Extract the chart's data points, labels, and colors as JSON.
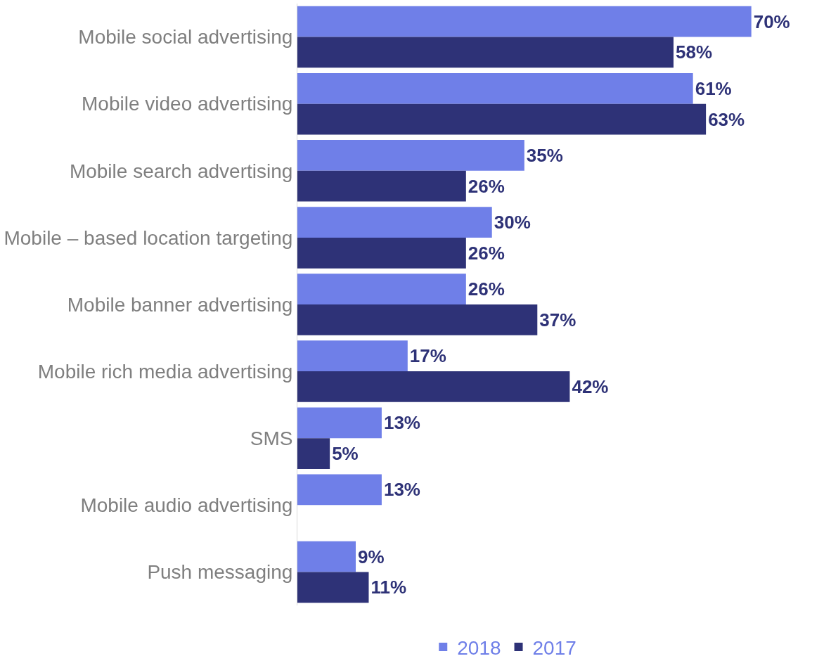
{
  "chart_data": {
    "type": "bar",
    "orientation": "horizontal",
    "categories": [
      "Mobile social advertising",
      "Mobile video advertising",
      "Mobile search advertising",
      "Mobile – based location targeting",
      "Mobile banner advertising",
      "Mobile rich media advertising",
      "SMS",
      "Mobile audio advertising",
      "Push messaging"
    ],
    "series": [
      {
        "name": "2018",
        "color": "#6f7fe8",
        "values": [
          70,
          61,
          35,
          30,
          26,
          17,
          13,
          13,
          9
        ],
        "value_labels": [
          "70%",
          "61%",
          "35%",
          "30%",
          "26%",
          "17%",
          "13%",
          "13%",
          "9%"
        ]
      },
      {
        "name": "2017",
        "color": "#2e3277",
        "values": [
          58,
          63,
          26,
          26,
          37,
          42,
          5,
          null,
          11
        ],
        "value_labels": [
          "58%",
          "63%",
          "26%",
          "26%",
          "37%",
          "42%",
          "5%",
          null,
          "11%"
        ]
      }
    ],
    "tick_labels": "y",
    "legend": "bottom"
  }
}
